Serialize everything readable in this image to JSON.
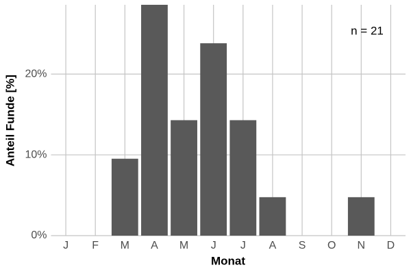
{
  "chart_data": {
    "type": "bar",
    "x_label": "Monat",
    "y_label": "Anteil Funde [%]",
    "annotation": "n = 21",
    "categories": [
      "J",
      "F",
      "M",
      "A",
      "M",
      "J",
      "J",
      "A",
      "S",
      "O",
      "N",
      "D"
    ],
    "values": [
      0,
      0,
      9.52,
      28.57,
      14.29,
      23.81,
      14.29,
      4.76,
      0,
      0,
      4.76,
      0
    ],
    "color": "#595959",
    "ylim": [
      0,
      28.57
    ],
    "yticks": [
      {
        "value": 0,
        "label": "0%"
      },
      {
        "value": 10,
        "label": "10%"
      },
      {
        "value": 20,
        "label": "20%"
      }
    ],
    "grid": true
  }
}
